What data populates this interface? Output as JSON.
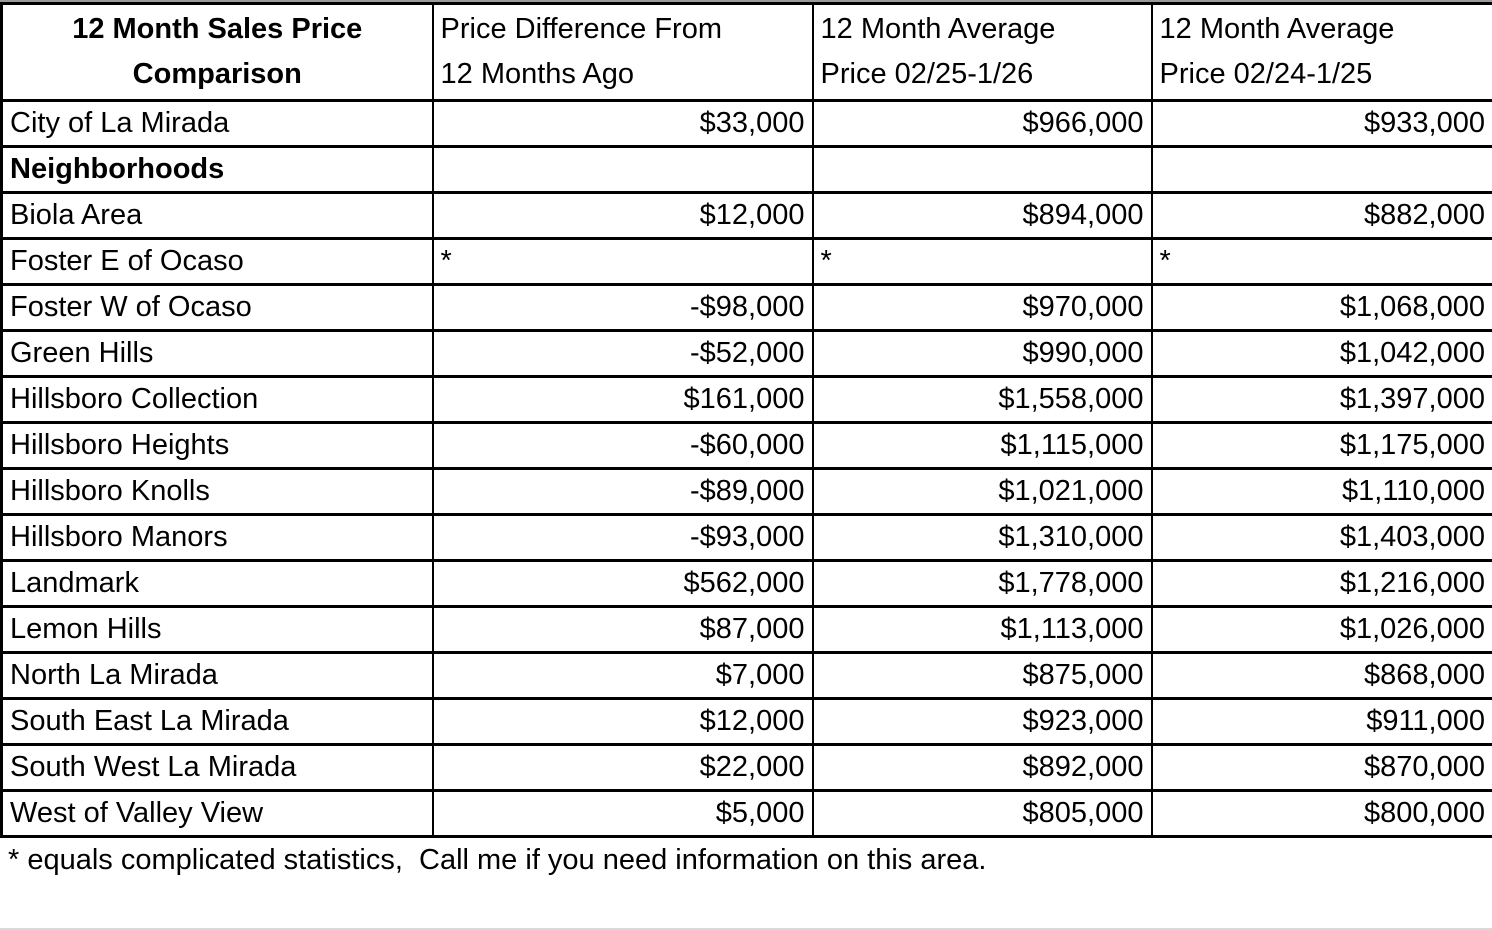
{
  "colors": {
    "text": "#000000",
    "background": "#ffffff",
    "grid_border": "#000000"
  },
  "chart_data": {
    "type": "table",
    "title": "12 Month Sales Price Comparison",
    "grid": "on",
    "column_headers": [
      {
        "line1": "12 Month Sales Price",
        "line2": "Comparison"
      },
      {
        "line1": "Price Difference From",
        "line2": "12 Months Ago"
      },
      {
        "line1": "12 Month Average",
        "line2": "Price 02/25-1/26"
      },
      {
        "line1": "12 Month Average",
        "line2": "Price 02/24-1/25"
      }
    ],
    "rows": [
      {
        "name": "City of La Mirada",
        "bold": false,
        "cells": [
          "$33,000",
          "$966,000",
          "$933,000"
        ]
      },
      {
        "name": "Neighborhoods",
        "bold": true,
        "cells": [
          "",
          "",
          ""
        ]
      },
      {
        "name": "Biola Area",
        "bold": false,
        "cells": [
          "$12,000",
          "$894,000",
          "$882,000"
        ]
      },
      {
        "name": "Foster E of Ocaso",
        "bold": false,
        "cells": [
          "*",
          "*",
          "*"
        ]
      },
      {
        "name": "Foster W of Ocaso",
        "bold": false,
        "cells": [
          "-$98,000",
          "$970,000",
          "$1,068,000"
        ]
      },
      {
        "name": "Green Hills",
        "bold": false,
        "cells": [
          "-$52,000",
          "$990,000",
          "$1,042,000"
        ]
      },
      {
        "name": "Hillsboro Collection",
        "bold": false,
        "cells": [
          "$161,000",
          "$1,558,000",
          "$1,397,000"
        ]
      },
      {
        "name": "Hillsboro Heights",
        "bold": false,
        "cells": [
          "-$60,000",
          "$1,115,000",
          "$1,175,000"
        ]
      },
      {
        "name": "Hillsboro Knolls",
        "bold": false,
        "cells": [
          "-$89,000",
          "$1,021,000",
          "$1,110,000"
        ]
      },
      {
        "name": "Hillsboro Manors",
        "bold": false,
        "cells": [
          "-$93,000",
          "$1,310,000",
          "$1,403,000"
        ]
      },
      {
        "name": "Landmark",
        "bold": false,
        "cells": [
          "$562,000",
          "$1,778,000",
          "$1,216,000"
        ]
      },
      {
        "name": "Lemon Hills",
        "bold": false,
        "cells": [
          "$87,000",
          "$1,113,000",
          "$1,026,000"
        ]
      },
      {
        "name": "North La Mirada",
        "bold": false,
        "cells": [
          "$7,000",
          "$875,000",
          "$868,000"
        ]
      },
      {
        "name": "South East La Mirada",
        "bold": false,
        "cells": [
          "$12,000",
          "$923,000",
          "$911,000"
        ]
      },
      {
        "name": "South West La Mirada",
        "bold": false,
        "cells": [
          "$22,000",
          "$892,000",
          "$870,000"
        ]
      },
      {
        "name": "West of Valley View",
        "bold": false,
        "cells": [
          "$5,000",
          "$805,000",
          "$800,000"
        ]
      }
    ],
    "footnote": "* equals complicated statistics,  Call me if you need information on this area."
  }
}
